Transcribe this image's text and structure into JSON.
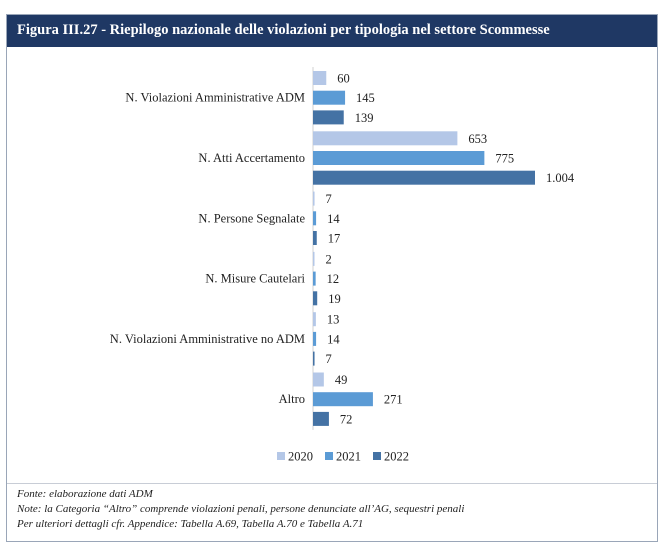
{
  "header": {
    "title": "Figura III.27 - Riepilogo nazionale delle violazioni per tipologia nel settore Scommesse"
  },
  "chart_data": {
    "type": "bar",
    "orientation": "horizontal",
    "categories": [
      "N. Violazioni Amministrative ADM",
      "N. Atti Accertamento",
      "N. Persone Segnalate",
      "N. Misure Cautelari",
      "N. Violazioni Amministrative no ADM",
      "Altro"
    ],
    "series": [
      {
        "name": "2020",
        "color": "#b4c7e7",
        "values": [
          60,
          653,
          7,
          2,
          13,
          49
        ],
        "labels": [
          "60",
          "653",
          "7",
          "2",
          "13",
          "49"
        ]
      },
      {
        "name": "2021",
        "color": "#5b9bd5",
        "values": [
          145,
          775,
          14,
          12,
          14,
          271
        ],
        "labels": [
          "145",
          "775",
          "14",
          "12",
          "14",
          "271"
        ]
      },
      {
        "name": "2022",
        "color": "#4472a4",
        "values": [
          139,
          1004,
          17,
          19,
          7,
          72
        ],
        "labels": [
          "139",
          "1.004",
          "17",
          "19",
          "7",
          "72"
        ]
      }
    ],
    "xlim": [
      0,
      1004
    ],
    "grid": false,
    "legend_position": "bottom"
  },
  "notes": {
    "source": "Fonte: elaborazione dati ADM",
    "note": "Note: la Categoria “Altro” comprende violazioni penali, persone denunciate all’AG, sequestri penali",
    "details": "Per ulteriori dettagli cfr. Appendice: Tabella A.69, Tabella A.70 e Tabella A.71"
  }
}
